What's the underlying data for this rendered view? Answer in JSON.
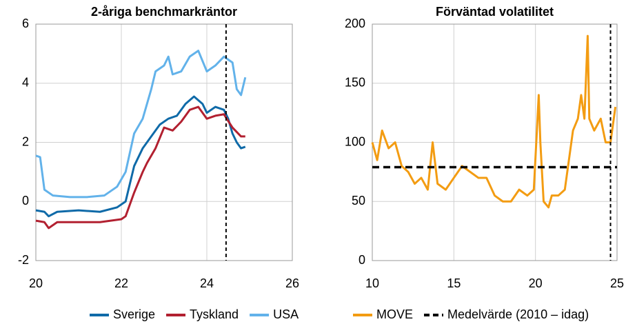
{
  "chart_data": [
    {
      "type": "line",
      "title": "2-åriga benchmarkräntor",
      "xlim": [
        20,
        26
      ],
      "xticks": [
        20,
        22,
        24,
        26
      ],
      "ylim": [
        -2,
        6
      ],
      "yticks": [
        -2,
        0,
        2,
        4,
        6
      ],
      "grid": true,
      "vline": 24.45,
      "series": [
        {
          "name": "Sverige",
          "color": "#0f6aa8",
          "x": [
            20.0,
            20.2,
            20.3,
            20.5,
            21.0,
            21.5,
            21.9,
            22.1,
            22.3,
            22.5,
            22.7,
            22.9,
            23.1,
            23.3,
            23.5,
            23.7,
            23.9,
            24.0,
            24.2,
            24.4,
            24.5,
            24.6,
            24.7,
            24.8,
            24.9
          ],
          "values": [
            -0.3,
            -0.35,
            -0.5,
            -0.35,
            -0.3,
            -0.35,
            -0.2,
            0.0,
            1.2,
            1.8,
            2.2,
            2.6,
            2.8,
            2.9,
            3.3,
            3.55,
            3.3,
            3.0,
            3.2,
            3.1,
            2.8,
            2.3,
            2.0,
            1.8,
            1.85
          ]
        },
        {
          "name": "Tyskland",
          "color": "#b22030",
          "x": [
            20.0,
            20.2,
            20.3,
            20.5,
            21.0,
            21.5,
            22.0,
            22.1,
            22.3,
            22.5,
            22.6,
            22.8,
            23.0,
            23.2,
            23.4,
            23.6,
            23.8,
            24.0,
            24.2,
            24.4,
            24.6,
            24.8,
            24.9
          ],
          "values": [
            -0.65,
            -0.7,
            -0.9,
            -0.7,
            -0.7,
            -0.7,
            -0.6,
            -0.5,
            0.3,
            1.0,
            1.3,
            1.8,
            2.5,
            2.4,
            2.7,
            3.1,
            3.2,
            2.8,
            2.9,
            2.95,
            2.5,
            2.2,
            2.2
          ]
        },
        {
          "name": "USA",
          "color": "#62b2ea",
          "x": [
            20.0,
            20.1,
            20.2,
            20.4,
            20.8,
            21.2,
            21.6,
            21.9,
            22.1,
            22.3,
            22.5,
            22.7,
            22.8,
            23.0,
            23.1,
            23.2,
            23.4,
            23.6,
            23.8,
            24.0,
            24.2,
            24.4,
            24.6,
            24.7,
            24.8,
            24.9
          ],
          "values": [
            1.55,
            1.5,
            0.4,
            0.2,
            0.15,
            0.15,
            0.2,
            0.5,
            1.0,
            2.3,
            2.8,
            3.8,
            4.4,
            4.6,
            4.9,
            4.3,
            4.4,
            4.9,
            5.1,
            4.4,
            4.6,
            4.9,
            4.7,
            3.8,
            3.6,
            4.2
          ]
        }
      ]
    },
    {
      "type": "line",
      "title": "Förväntad volatilitet",
      "xlim": [
        10,
        25
      ],
      "xticks": [
        10,
        15,
        20,
        25
      ],
      "ylim": [
        0,
        200
      ],
      "yticks": [
        0,
        50,
        100,
        150,
        200
      ],
      "grid": true,
      "vline": 24.6,
      "reference": {
        "name": "Medelvärde (2010 – idag)",
        "value": 79
      },
      "series": [
        {
          "name": "MOVE",
          "color": "#f39c12",
          "x": [
            10,
            10.3,
            10.6,
            11,
            11.4,
            11.8,
            12.2,
            12.6,
            13,
            13.4,
            13.7,
            14,
            14.5,
            15,
            15.5,
            16,
            16.5,
            17,
            17.5,
            18,
            18.5,
            19,
            19.5,
            19.9,
            20.2,
            20.3,
            20.5,
            20.8,
            21,
            21.4,
            21.8,
            22,
            22.3,
            22.6,
            22.8,
            23.0,
            23.2,
            23.3,
            23.6,
            24,
            24.3,
            24.6,
            24.9
          ],
          "values": [
            100,
            85,
            110,
            95,
            100,
            80,
            75,
            65,
            70,
            60,
            100,
            65,
            60,
            70,
            80,
            75,
            70,
            70,
            55,
            50,
            50,
            60,
            55,
            60,
            140,
            100,
            50,
            45,
            55,
            55,
            60,
            80,
            110,
            120,
            140,
            120,
            190,
            120,
            110,
            120,
            100,
            100,
            130
          ]
        }
      ]
    }
  ]
}
